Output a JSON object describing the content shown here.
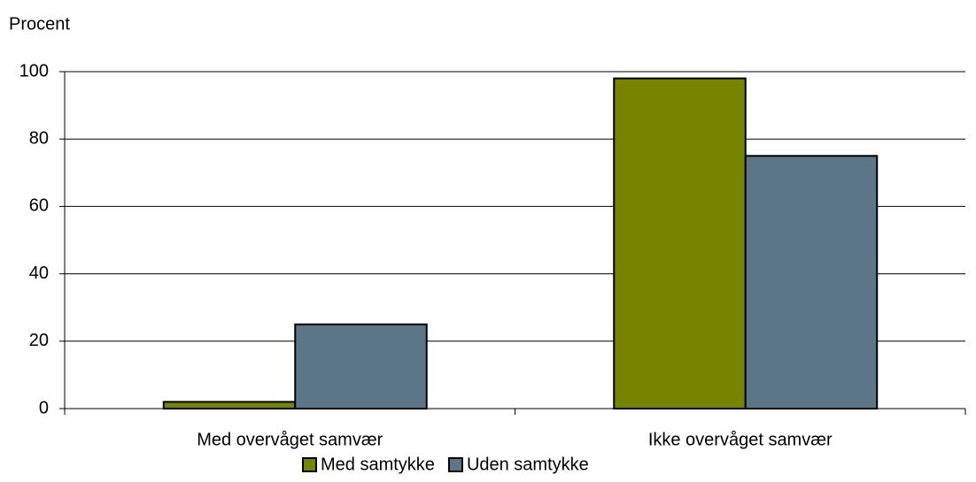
{
  "chart_data": {
    "type": "bar",
    "y_axis_label": "Procent",
    "categories": [
      "Med overvåget samvær",
      "Ikke overvåget samvær"
    ],
    "series": [
      {
        "name": "Med samtykke",
        "color": "#768400",
        "values": [
          2,
          98
        ]
      },
      {
        "name": "Uden samtykke",
        "color": "#5b7686",
        "values": [
          25,
          75
        ]
      }
    ],
    "ylim": [
      0,
      100
    ],
    "yticks": [
      0,
      20,
      40,
      60,
      80,
      100
    ],
    "grid": true,
    "legend": "bottom"
  }
}
